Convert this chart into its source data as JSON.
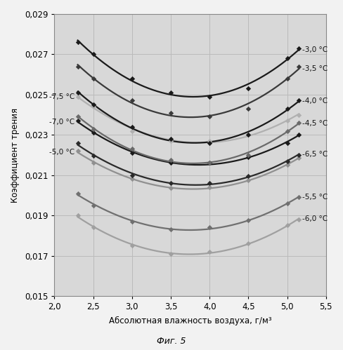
{
  "title": "Фиг. 5",
  "xlabel": "Абсолютная влажность воздуха, г/м³",
  "ylabel": "Коэффициент трения",
  "xlim": [
    2.0,
    5.5
  ],
  "ylim": [
    0.015,
    0.029
  ],
  "xticks": [
    2.0,
    2.5,
    3.0,
    3.5,
    4.0,
    4.5,
    5.0,
    5.5
  ],
  "yticks": [
    0.015,
    0.017,
    0.019,
    0.021,
    0.023,
    0.025,
    0.027,
    0.029
  ],
  "background_color": "#d8d8d8",
  "fig_color": "#f2f2f2",
  "curves": [
    {
      "label": "-3,0 °C",
      "color": "#1a1a1a",
      "linewidth": 1.6,
      "label_side": "right",
      "points_x": [
        2.3,
        2.5,
        3.0,
        3.5,
        4.0,
        4.5,
        5.0,
        5.15
      ],
      "points_y": [
        0.0276,
        0.027,
        0.0258,
        0.0251,
        0.0249,
        0.0253,
        0.0268,
        0.0273
      ]
    },
    {
      "label": "-3,5 °C",
      "color": "#3a3a3a",
      "linewidth": 1.6,
      "label_side": "right",
      "points_x": [
        2.3,
        2.5,
        3.0,
        3.5,
        4.0,
        4.5,
        5.0,
        5.15
      ],
      "points_y": [
        0.0264,
        0.0258,
        0.0247,
        0.0241,
        0.0239,
        0.0243,
        0.0258,
        0.0264
      ]
    },
    {
      "label": "-7,5 °C",
      "color": "#b0b0b0",
      "linewidth": 1.6,
      "label_side": "left",
      "points_x": [
        2.3,
        2.5,
        3.0,
        3.5,
        4.0,
        4.5,
        5.0,
        5.15
      ],
      "points_y": [
        0.0249,
        0.0244,
        0.0232,
        0.0227,
        0.0227,
        0.023,
        0.0237,
        0.024
      ]
    },
    {
      "label": "-4,0 °C",
      "color": "#1a1a1a",
      "linewidth": 1.6,
      "label_side": "right",
      "points_x": [
        2.3,
        2.5,
        3.0,
        3.5,
        4.0,
        4.5,
        5.0,
        5.15
      ],
      "points_y": [
        0.0251,
        0.0245,
        0.0234,
        0.0228,
        0.0226,
        0.023,
        0.0243,
        0.0247
      ]
    },
    {
      "label": "-7,0 °C",
      "color": "#1a1a1a",
      "linewidth": 1.6,
      "label_side": "left",
      "points_x": [
        2.3,
        2.5,
        3.0,
        3.5,
        4.0,
        4.5,
        5.0,
        5.15
      ],
      "points_y": [
        0.0237,
        0.0231,
        0.0221,
        0.0216,
        0.0216,
        0.0219,
        0.0226,
        0.023
      ]
    },
    {
      "label": "-4,5 °C",
      "color": "#6a6a6a",
      "linewidth": 1.6,
      "label_side": "right",
      "points_x": [
        2.3,
        2.5,
        3.0,
        3.5,
        4.0,
        4.5,
        5.0,
        5.15
      ],
      "points_y": [
        0.0239,
        0.0233,
        0.0223,
        0.02175,
        0.0216,
        0.022,
        0.0232,
        0.0236
      ]
    },
    {
      "label": "-5,0 °C",
      "color": "#909090",
      "linewidth": 1.6,
      "label_side": "left",
      "points_x": [
        2.3,
        2.5,
        3.0,
        3.5,
        4.0,
        4.5,
        5.0,
        5.15
      ],
      "points_y": [
        0.0222,
        0.0216,
        0.0208,
        0.02035,
        0.0204,
        0.02075,
        0.0215,
        0.02185
      ]
    },
    {
      "label": "-6,5 °C",
      "color": "#2a2a2a",
      "linewidth": 1.6,
      "label_side": "right",
      "points_x": [
        2.3,
        2.5,
        3.0,
        3.5,
        4.0,
        4.5,
        5.0,
        5.15
      ],
      "points_y": [
        0.0226,
        0.02195,
        0.021,
        0.0206,
        0.0206,
        0.02095,
        0.0217,
        0.022
      ]
    },
    {
      "label": "-5,5 °C",
      "color": "#707070",
      "linewidth": 1.6,
      "label_side": "right",
      "points_x": [
        2.3,
        2.5,
        3.0,
        3.5,
        4.0,
        4.5,
        5.0,
        5.15
      ],
      "points_y": [
        0.0201,
        0.0195,
        0.0187,
        0.0183,
        0.0184,
        0.01875,
        0.0196,
        0.0199
      ]
    },
    {
      "label": "-6,0 °C",
      "color": "#a0a0a0",
      "linewidth": 1.6,
      "label_side": "right",
      "points_x": [
        2.3,
        2.5,
        3.0,
        3.5,
        4.0,
        4.5,
        5.0,
        5.15
      ],
      "points_y": [
        0.019,
        0.0184,
        0.0175,
        0.0171,
        0.0172,
        0.0176,
        0.0185,
        0.0188
      ]
    }
  ]
}
